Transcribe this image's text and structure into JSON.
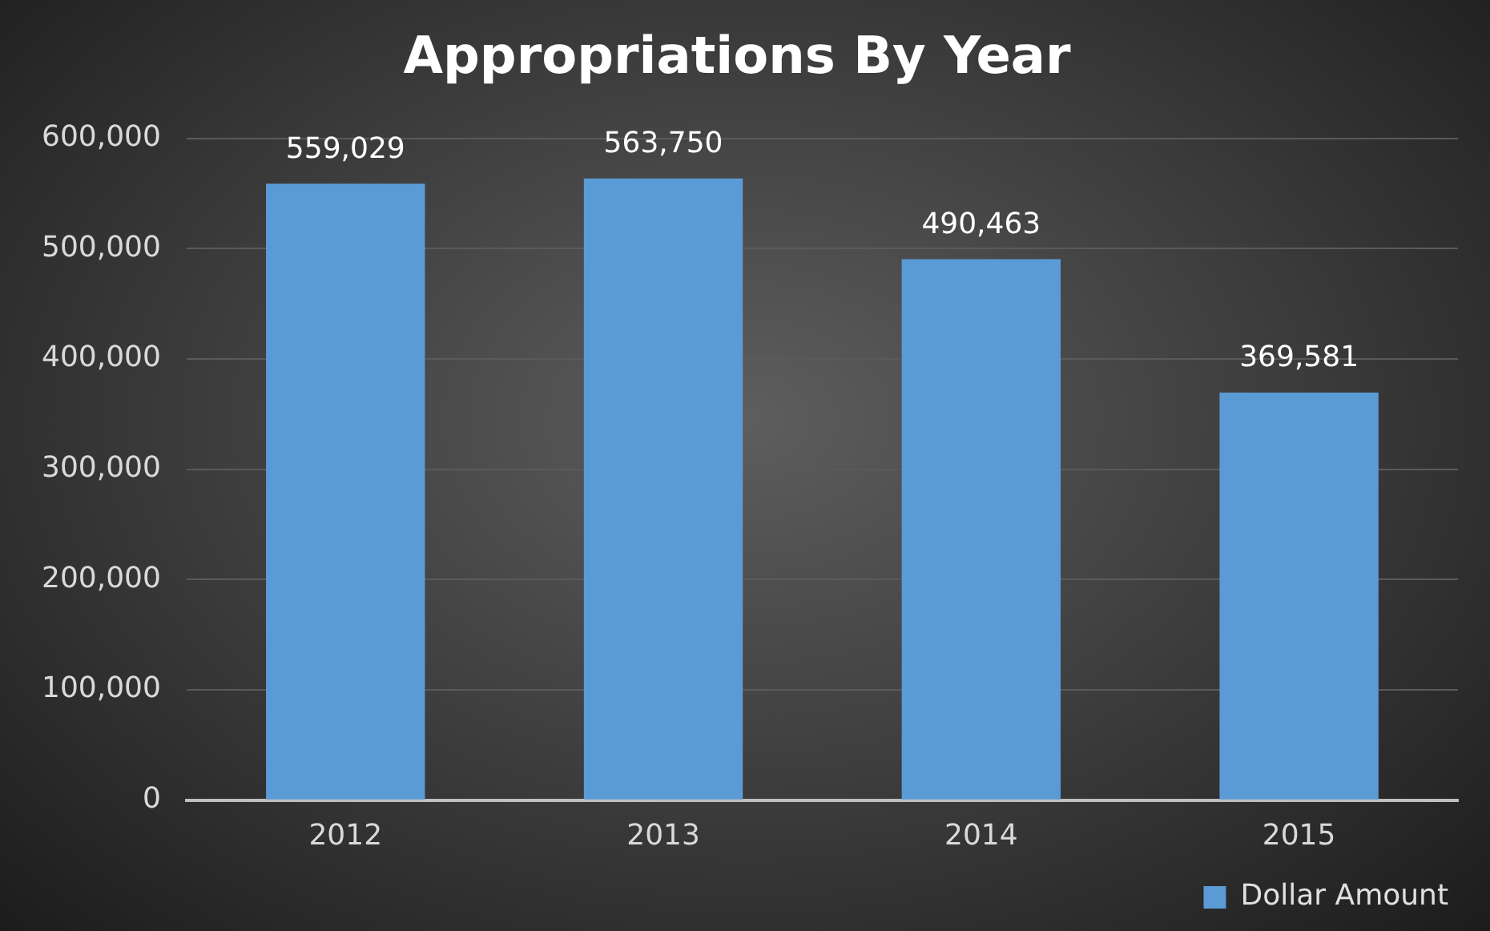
{
  "chart_data": {
    "type": "bar",
    "title": "Appropriations By Year",
    "categories": [
      "2012",
      "2013",
      "2014",
      "2015"
    ],
    "series": [
      {
        "name": "Dollar Amount",
        "color": "#5b9bd5",
        "values": [
          559029,
          563750,
          490463,
          369581
        ],
        "value_labels": [
          "559,029",
          "563,750",
          "490,463",
          "369,581"
        ]
      }
    ],
    "ylim": [
      0,
      600000
    ],
    "yticks": [
      {
        "value": 0,
        "label": "0"
      },
      {
        "value": 100000,
        "label": "100,000"
      },
      {
        "value": 200000,
        "label": "200,000"
      },
      {
        "value": 300000,
        "label": "300,000"
      },
      {
        "value": 400000,
        "label": "400,000"
      },
      {
        "value": 500000,
        "label": "500,000"
      },
      {
        "value": 600000,
        "label": "600,000"
      }
    ],
    "grid": "y",
    "legend": "bottom right"
  }
}
